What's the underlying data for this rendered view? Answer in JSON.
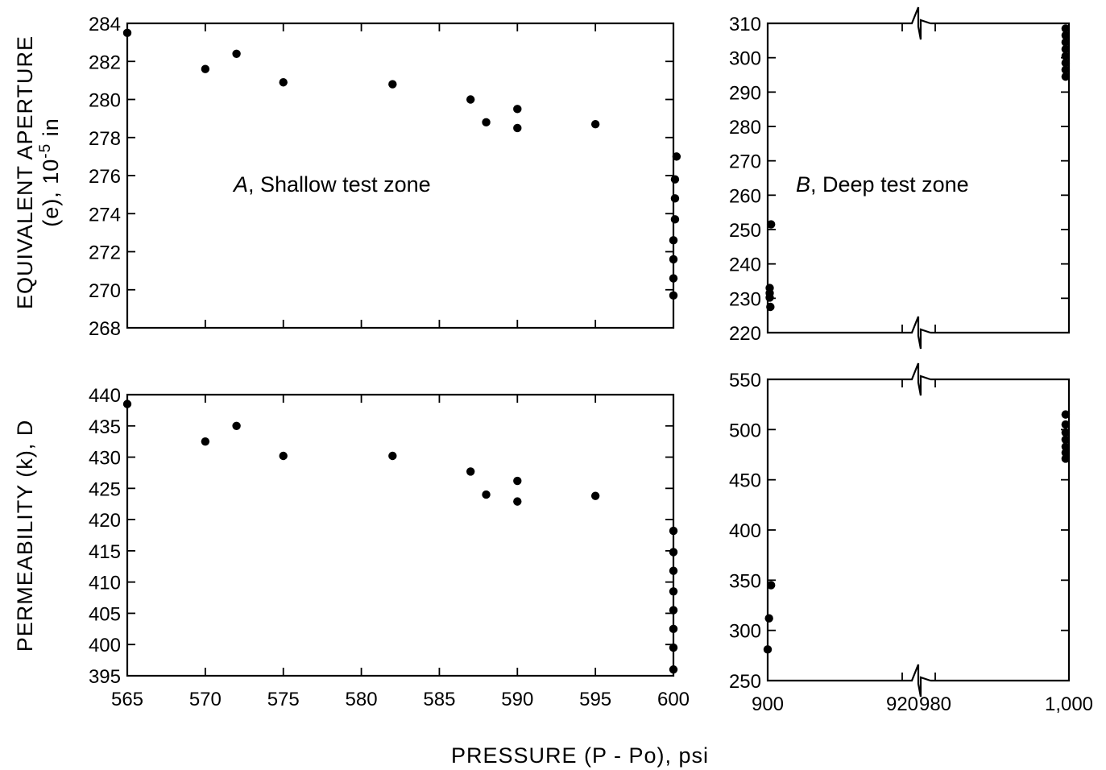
{
  "chart_data": [
    {
      "id": "aperture-shallow",
      "type": "scatter",
      "annotation_letter": "A",
      "annotation_text": ", Shallow test zone",
      "ylabel_line1": "EQUIVALENT APERTURE",
      "ylabel_line2": "(e), 10",
      "ylabel_sup": "-5",
      "ylabel_unit": " in",
      "xlim": [
        565,
        600
      ],
      "ylim": [
        268,
        284
      ],
      "xticks": [
        565,
        570,
        575,
        580,
        585,
        590,
        595,
        600
      ],
      "yticks": [
        268,
        270,
        272,
        274,
        276,
        278,
        280,
        282,
        284
      ],
      "xtick_labels": [],
      "ytick_labels": [
        "268",
        "270",
        "272",
        "274",
        "276",
        "278",
        "280",
        "282",
        "284"
      ],
      "points": [
        [
          565,
          283.5
        ],
        [
          570,
          281.6
        ],
        [
          572,
          282.4
        ],
        [
          575,
          280.9
        ],
        [
          582,
          280.8
        ],
        [
          587,
          280.0
        ],
        [
          588,
          278.8
        ],
        [
          590,
          279.5
        ],
        [
          590,
          278.5
        ],
        [
          595,
          278.7
        ],
        [
          600.2,
          277.0
        ],
        [
          600.1,
          275.8
        ],
        [
          600.1,
          274.8
        ],
        [
          600.1,
          273.7
        ],
        [
          600.0,
          272.6
        ],
        [
          600.0,
          271.6
        ],
        [
          600.0,
          270.6
        ],
        [
          600.0,
          269.7
        ]
      ]
    },
    {
      "id": "aperture-deep",
      "type": "scatter",
      "annotation_letter": "B",
      "annotation_text": ", Deep test zone",
      "x_break": true,
      "xlim": [
        900,
        1000
      ],
      "ylim": [
        220,
        310
      ],
      "xticks": [
        900,
        920,
        980,
        1000
      ],
      "yticks": [
        220,
        230,
        240,
        250,
        260,
        270,
        280,
        290,
        300,
        310
      ],
      "xtick_labels": [],
      "ytick_labels": [
        "220",
        "230",
        "240",
        "250",
        "260",
        "270",
        "280",
        "290",
        "300",
        "310"
      ],
      "points": [
        [
          900.5,
          251.5
        ],
        [
          900.3,
          233.0
        ],
        [
          900.3,
          231.5
        ],
        [
          900.3,
          230.2
        ],
        [
          900.4,
          227.5
        ],
        [
          999.5,
          308.5
        ],
        [
          999.5,
          306.5
        ],
        [
          999.5,
          304.5
        ],
        [
          999.5,
          302.5
        ],
        [
          999.5,
          300.5
        ],
        [
          999.5,
          298.5
        ],
        [
          999.5,
          296.5
        ],
        [
          999.5,
          294.5
        ]
      ]
    },
    {
      "id": "permeability-shallow",
      "type": "scatter",
      "ylabel": "PERMEABILITY (k), D",
      "xlim": [
        565,
        600
      ],
      "ylim": [
        395,
        440
      ],
      "xticks": [
        565,
        570,
        575,
        580,
        585,
        590,
        595,
        600
      ],
      "yticks": [
        395,
        400,
        405,
        410,
        415,
        420,
        425,
        430,
        435,
        440
      ],
      "xtick_labels": [
        "565",
        "570",
        "575",
        "580",
        "585",
        "590",
        "595",
        "600"
      ],
      "ytick_labels": [
        "395",
        "400",
        "405",
        "410",
        "415",
        "420",
        "425",
        "430",
        "435",
        "440"
      ],
      "points": [
        [
          565,
          438.5
        ],
        [
          570,
          432.5
        ],
        [
          572,
          435.0
        ],
        [
          575,
          430.2
        ],
        [
          582,
          430.2
        ],
        [
          587,
          427.7
        ],
        [
          588,
          424.0
        ],
        [
          590,
          426.2
        ],
        [
          590,
          422.9
        ],
        [
          595,
          423.8
        ],
        [
          600.0,
          418.2
        ],
        [
          600.0,
          414.8
        ],
        [
          600.0,
          411.8
        ],
        [
          600.0,
          408.5
        ],
        [
          600.0,
          405.5
        ],
        [
          600.0,
          402.5
        ],
        [
          600.0,
          399.5
        ],
        [
          600.0,
          396.0
        ]
      ]
    },
    {
      "id": "permeability-deep",
      "type": "scatter",
      "x_break": true,
      "xlim": [
        900,
        1000
      ],
      "ylim": [
        250,
        550
      ],
      "xticks": [
        900,
        920,
        980,
        1000
      ],
      "yticks": [
        250,
        300,
        350,
        400,
        450,
        500,
        550
      ],
      "xtick_labels": [
        "900",
        "920",
        "980",
        "1,000"
      ],
      "ytick_labels": [
        "250",
        "300",
        "350",
        "400",
        "450",
        "500",
        "550"
      ],
      "points": [
        [
          900.5,
          345
        ],
        [
          900.2,
          312
        ],
        [
          900.0,
          281
        ],
        [
          999.5,
          515
        ],
        [
          999.5,
          505
        ],
        [
          999.5,
          497
        ],
        [
          999.5,
          490
        ],
        [
          999.5,
          483
        ],
        [
          999.5,
          477
        ],
        [
          999.5,
          471
        ]
      ]
    }
  ],
  "xlabel": "PRESSURE (P - Po),  psi"
}
